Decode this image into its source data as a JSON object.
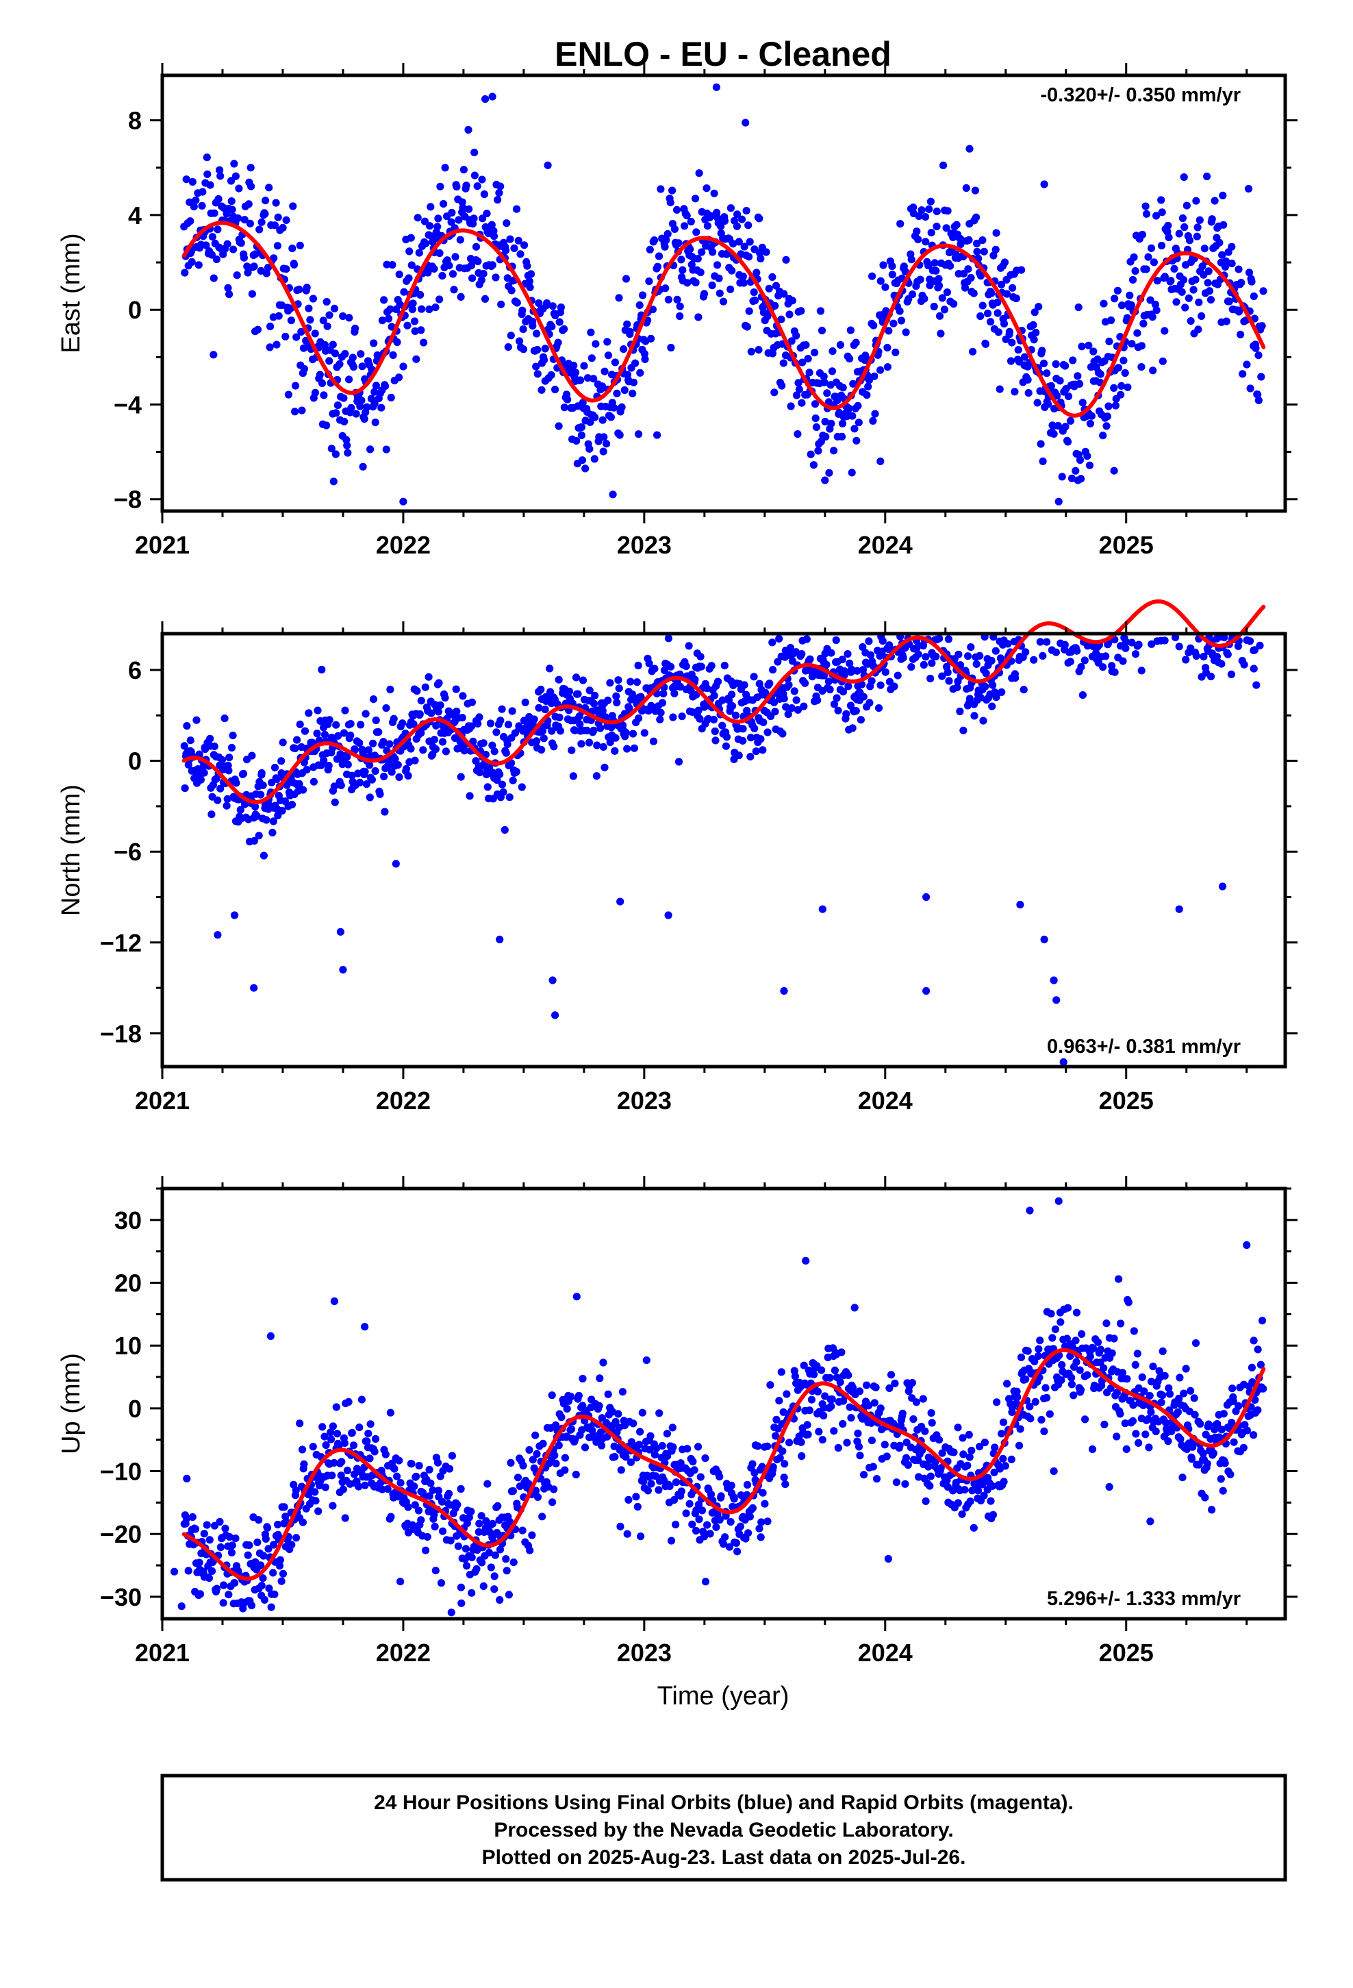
{
  "title": "ENLO  - EU - Cleaned",
  "xlabel": "Time (year)",
  "footer": {
    "line1": "24 Hour Positions Using Final Orbits (blue) and Rapid Orbits (magenta).",
    "line2": "Processed by the Nevada Geodetic Laboratory.",
    "line3": "Plotted on 2025-Aug-23. Last data on 2025-Jul-26."
  },
  "colors": {
    "points": "#0000ff",
    "model": "#ff0000",
    "frame": "#000000"
  },
  "chart_data": [
    {
      "type": "scatter",
      "component": "east",
      "ylabel": "East (mm)",
      "rate_text": "-0.320+/- 0.350 mm/yr",
      "rate_mm_per_yr": -0.32,
      "rate_sigma": 0.35,
      "xlim": [
        2021.0,
        2025.66
      ],
      "ylim": [
        -8.5,
        9.9
      ],
      "xticks": [
        2021,
        2022,
        2023,
        2024,
        2025
      ],
      "xtick_labels": [
        "2021",
        "2022",
        "2023",
        "2024",
        "2025"
      ],
      "yticks": [
        -8,
        -4,
        0,
        4,
        8
      ],
      "ytick_labels": [
        "−8",
        "−4",
        "0",
        "4",
        "8"
      ],
      "data_start": 2021.09,
      "data_end": 2025.57,
      "model": {
        "offset": 0.55,
        "annual_cos": -0.5,
        "annual_sin": 3.45,
        "semi_cos": 0.25,
        "semi_sin": 0.25
      },
      "scatter_sigma": 1.45,
      "outliers": [
        [
          2021.55,
          -4.3
        ],
        [
          2021.72,
          -6.1
        ],
        [
          2021.93,
          -5.9
        ],
        [
          2022.0,
          -8.1
        ],
        [
          2022.27,
          7.6
        ],
        [
          2022.34,
          8.9
        ],
        [
          2022.37,
          9.0
        ],
        [
          2022.6,
          6.1
        ],
        [
          2022.74,
          -5.3
        ],
        [
          2022.87,
          -7.8
        ],
        [
          2023.3,
          9.4
        ],
        [
          2023.42,
          7.9
        ],
        [
          2023.75,
          -7.2
        ],
        [
          2023.98,
          -6.4
        ],
        [
          2024.35,
          6.8
        ],
        [
          2024.66,
          5.3
        ],
        [
          2024.72,
          -8.1
        ],
        [
          2024.8,
          -7.2
        ],
        [
          2024.95,
          -6.8
        ],
        [
          2025.24,
          5.6
        ]
      ]
    },
    {
      "type": "scatter",
      "component": "north",
      "ylabel": "North (mm)",
      "rate_text": "0.963+/- 0.381 mm/yr",
      "rate_mm_per_yr": 0.963,
      "rate_sigma": 0.381,
      "xlim": [
        2021.0,
        2025.66
      ],
      "ylim": [
        -20.2,
        8.4
      ],
      "xticks": [
        2021,
        2022,
        2023,
        2024,
        2025
      ],
      "xtick_labels": [
        "2021",
        "2022",
        "2023",
        "2024",
        "2025"
      ],
      "yticks": [
        -18,
        -12,
        -6,
        0,
        6
      ],
      "ytick_labels": [
        "−18",
        "−12",
        "−6",
        "0",
        "6"
      ],
      "data_start": 2021.09,
      "data_end": 2025.57,
      "model": {
        "offset": -1.3,
        "annual_cos": 0.4,
        "annual_sin": -0.3,
        "semi_cos": -0.3,
        "semi_sin": 1.3
      },
      "scatter_sigma": 1.35,
      "steps": [
        [
          2021.75,
          1.6
        ],
        [
          2022.8,
          1.8
        ],
        [
          2023.8,
          1.7
        ],
        [
          2024.75,
          1.4
        ]
      ],
      "outliers": [
        [
          2021.23,
          -11.5
        ],
        [
          2021.3,
          -10.2
        ],
        [
          2021.38,
          -15.0
        ],
        [
          2021.74,
          -11.3
        ],
        [
          2021.75,
          -13.8
        ],
        [
          2022.4,
          -11.8
        ],
        [
          2022.62,
          -14.5
        ],
        [
          2022.63,
          -16.8
        ],
        [
          2022.9,
          -9.3
        ],
        [
          2023.1,
          -10.2
        ],
        [
          2023.22,
          7.1
        ],
        [
          2023.58,
          -15.2
        ],
        [
          2023.74,
          -9.8
        ],
        [
          2024.17,
          -15.2
        ],
        [
          2024.17,
          -9.0
        ],
        [
          2024.56,
          -9.5
        ],
        [
          2024.66,
          -11.8
        ],
        [
          2024.7,
          -14.5
        ],
        [
          2024.71,
          -15.8
        ],
        [
          2024.74,
          -19.9
        ],
        [
          2024.84,
          7.6
        ],
        [
          2025.22,
          -9.8
        ],
        [
          2025.4,
          -8.3
        ],
        [
          2025.54,
          5.0
        ]
      ]
    },
    {
      "type": "scatter",
      "component": "up",
      "ylabel": "Up (mm)",
      "rate_text": "5.296+/- 1.333 mm/yr",
      "rate_mm_per_yr": 5.296,
      "rate_sigma": 1.333,
      "xlim": [
        2021.0,
        2025.66
      ],
      "ylim": [
        -33.5,
        35.0
      ],
      "xticks": [
        2021,
        2022,
        2023,
        2024,
        2025
      ],
      "xtick_labels": [
        "2021",
        "2022",
        "2023",
        "2024",
        "2025"
      ],
      "yticks": [
        -30,
        -20,
        -10,
        0,
        10,
        20,
        30
      ],
      "ytick_labels": [
        "−30",
        "−20",
        "−10",
        "0",
        "10",
        "20",
        "30"
      ],
      "data_start": 2021.09,
      "data_end": 2025.57,
      "model": {
        "offset": -19.7,
        "annual_cos": 2.5,
        "annual_sin": -7.8,
        "semi_cos": -1.3,
        "semi_sin": 2.0
      },
      "scatter_sigma": 3.9,
      "outliers": [
        [
          2021.05,
          -26.0
        ],
        [
          2021.08,
          -31.5
        ],
        [
          2021.3,
          -27.8
        ],
        [
          2021.45,
          11.5
        ],
        [
          2021.84,
          13.0
        ],
        [
          2022.2,
          -32.5
        ],
        [
          2022.24,
          -28.5
        ],
        [
          2022.4,
          -30.5
        ],
        [
          2022.72,
          17.8
        ],
        [
          2022.93,
          -20.0
        ],
        [
          2023.13,
          -18.5
        ],
        [
          2023.67,
          23.5
        ],
        [
          2024.26,
          -12.5
        ],
        [
          2024.6,
          31.5
        ],
        [
          2024.72,
          33.0
        ],
        [
          2024.7,
          -10.0
        ],
        [
          2024.86,
          -6.5
        ],
        [
          2024.93,
          -12.5
        ],
        [
          2025.1,
          -18.0
        ],
        [
          2025.5,
          26.0
        ]
      ]
    }
  ]
}
